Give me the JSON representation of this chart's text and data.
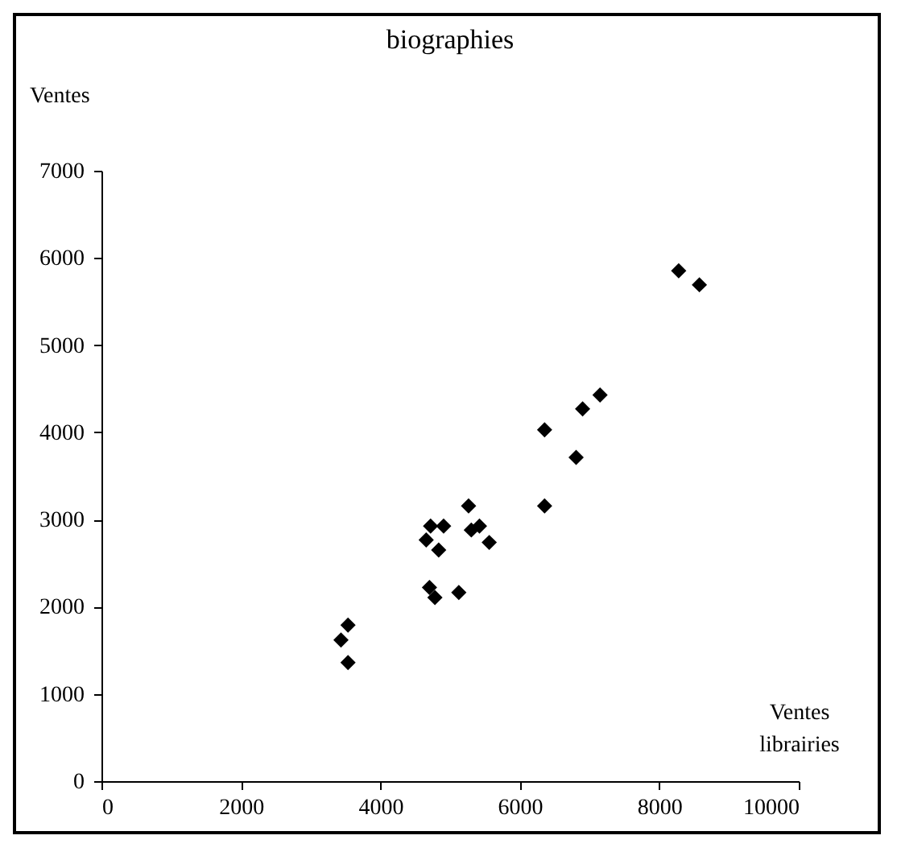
{
  "chart_data": {
    "type": "scatter",
    "title": "biographies",
    "xlabel": "Ventes librairies",
    "ylabel": "Ventes",
    "x": [
      5265,
      6355,
      4720,
      4907,
      4657,
      4836,
      5304,
      5421,
      5561,
      4704,
      4782,
      5125,
      3536,
      3435,
      3536,
      8278,
      8575,
      7150,
      6900,
      6355,
      6807
    ],
    "series": [
      {
        "color": "#000000",
        "values": [
          3155,
          3155,
          2926,
          2926,
          2766,
          2650,
          2880,
          2926,
          2737,
          2220,
          2105,
          2163,
          1790,
          1618,
          1360,
          5852,
          5692,
          4429,
          4269,
          4028,
          3713
        ]
      }
    ],
    "xlim": [
      0,
      10000
    ],
    "xticks": [
      0,
      2000,
      4000,
      6000,
      8000,
      10000
    ],
    "ylim": [
      0,
      7000
    ],
    "yticks": [
      0,
      1000,
      2000,
      3000,
      4000,
      5000,
      6000,
      7000
    ],
    "marker": "diamond",
    "grid": false,
    "legend": false
  }
}
